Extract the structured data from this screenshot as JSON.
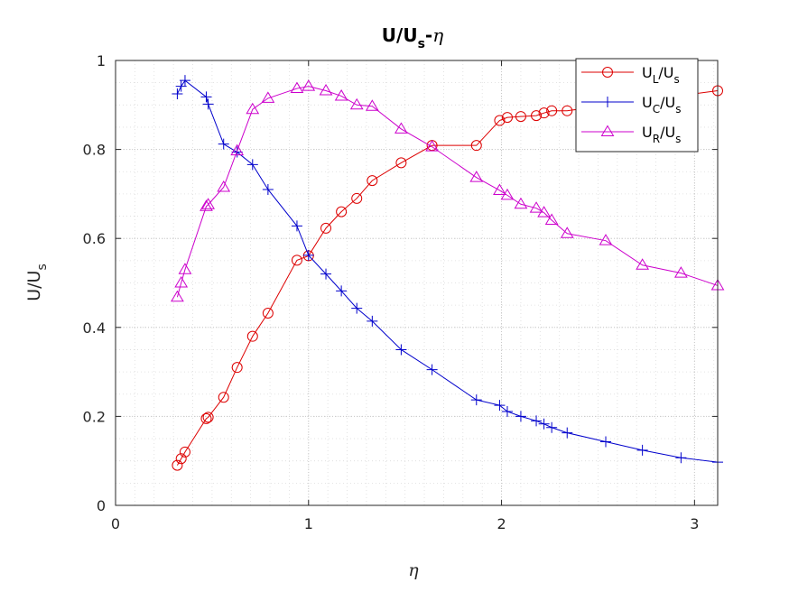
{
  "chart_data": {
    "type": "line",
    "title": {
      "main": "U/U",
      "sub": "s",
      "suffix": "-",
      "greek": "η"
    },
    "xlabel": "η",
    "ylabel": {
      "main": "U/U",
      "sub": "s"
    },
    "xlim": [
      0,
      3.12
    ],
    "ylim": [
      0,
      1
    ],
    "xticks": [
      0,
      1,
      2,
      3
    ],
    "xtick_labels": [
      "0",
      "1",
      "2",
      "3"
    ],
    "yticks": [
      0,
      0.2,
      0.4,
      0.6,
      0.8,
      1
    ],
    "ytick_labels": [
      "0",
      "0.2",
      "0.4",
      "0.6",
      "0.8",
      "1"
    ],
    "grid": true,
    "minor_grid": true,
    "legend_position": "top-right",
    "series": [
      {
        "name": "U_L/U_s",
        "label_main": "U",
        "label_sub": "L",
        "label_mid": "/U",
        "label_sub2": "s",
        "color": "#dd0000",
        "marker": "circle",
        "x": [
          0.32,
          0.34,
          0.36,
          0.47,
          0.48,
          0.56,
          0.63,
          0.71,
          0.79,
          0.94,
          1.0,
          1.09,
          1.17,
          1.25,
          1.33,
          1.48,
          1.64,
          1.87,
          1.99,
          2.03,
          2.1,
          2.18,
          2.22,
          2.26,
          2.34,
          3.12
        ],
        "y": [
          0.09,
          0.105,
          0.12,
          0.195,
          0.198,
          0.243,
          0.31,
          0.38,
          0.432,
          0.551,
          0.561,
          0.623,
          0.66,
          0.69,
          0.73,
          0.77,
          0.809,
          0.809,
          0.865,
          0.872,
          0.874,
          0.876,
          0.882,
          0.887,
          0.887,
          0.932
        ]
      },
      {
        "name": "U_C/U_s",
        "label_main": "U",
        "label_sub": "C",
        "label_mid": "/U",
        "label_sub2": "s",
        "color": "#0000cc",
        "marker": "plus",
        "x": [
          0.32,
          0.34,
          0.36,
          0.47,
          0.48,
          0.56,
          0.63,
          0.71,
          0.79,
          0.94,
          1.0,
          1.09,
          1.17,
          1.25,
          1.33,
          1.48,
          1.64,
          1.87,
          1.99,
          2.03,
          2.1,
          2.18,
          2.22,
          2.26,
          2.34,
          2.54,
          2.73,
          2.93,
          3.12
        ],
        "y": [
          0.925,
          0.942,
          0.955,
          0.918,
          0.902,
          0.812,
          0.794,
          0.766,
          0.71,
          0.628,
          0.562,
          0.52,
          0.482,
          0.443,
          0.414,
          0.35,
          0.305,
          0.237,
          0.225,
          0.211,
          0.2,
          0.19,
          0.183,
          0.175,
          0.163,
          0.143,
          0.124,
          0.107,
          0.097
        ]
      },
      {
        "name": "U_R/U_s",
        "label_main": "U",
        "label_sub": "R",
        "label_mid": "/U",
        "label_sub2": "s",
        "color": "#cc00cc",
        "marker": "triangle",
        "x": [
          0.32,
          0.34,
          0.36,
          0.47,
          0.48,
          0.56,
          0.63,
          0.71,
          0.79,
          0.94,
          1.0,
          1.09,
          1.17,
          1.25,
          1.33,
          1.48,
          1.64,
          1.87,
          1.99,
          2.03,
          2.1,
          2.18,
          2.22,
          2.26,
          2.34,
          2.54,
          2.73,
          2.93,
          3.12
        ],
        "y": [
          0.468,
          0.5,
          0.53,
          0.672,
          0.676,
          0.715,
          0.797,
          0.89,
          0.915,
          0.937,
          0.942,
          0.932,
          0.92,
          0.9,
          0.897,
          0.846,
          0.806,
          0.737,
          0.708,
          0.697,
          0.677,
          0.668,
          0.658,
          0.641,
          0.611,
          0.595,
          0.54,
          0.522,
          0.494
        ]
      }
    ]
  }
}
